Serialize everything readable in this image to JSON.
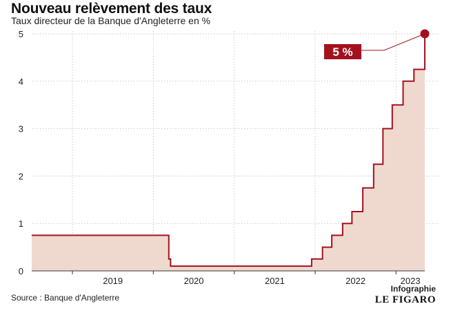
{
  "header": {
    "title": "Nouveau relèvement des taux",
    "subtitle": "Taux directeur de la Banque d'Angleterre en %"
  },
  "footer": {
    "source": "Source : Banque d'Angleterre",
    "kicker": "Infographie",
    "brand": "LE FIGARO"
  },
  "colors": {
    "line": "#a3111f",
    "fill": "#efd9cf",
    "badge": "#a3111f",
    "grid": "#c8c8c8"
  },
  "chart_data": {
    "type": "area",
    "step": "post",
    "title": "Nouveau relèvement des taux",
    "subtitle": "Taux directeur de la Banque d'Angleterre en %",
    "xlabel": "",
    "ylabel": "",
    "ylim": [
      0,
      5
    ],
    "yticks": [
      0,
      1,
      2,
      3,
      4,
      5
    ],
    "xlim": [
      "2018-07-01",
      "2023-05-11"
    ],
    "xtick_labels": [
      "2019",
      "2020",
      "2021",
      "2022",
      "2023"
    ],
    "grid": true,
    "series": [
      {
        "name": "",
        "points": [
          {
            "x": "2018-07-01",
            "y": 0.75
          },
          {
            "x": "2020-03-11",
            "y": 0.25
          },
          {
            "x": "2020-03-19",
            "y": 0.1
          },
          {
            "x": "2021-12-16",
            "y": 0.25
          },
          {
            "x": "2022-02-03",
            "y": 0.5
          },
          {
            "x": "2022-03-17",
            "y": 0.75
          },
          {
            "x": "2022-05-05",
            "y": 1.0
          },
          {
            "x": "2022-06-16",
            "y": 1.25
          },
          {
            "x": "2022-08-04",
            "y": 1.75
          },
          {
            "x": "2022-09-22",
            "y": 2.25
          },
          {
            "x": "2022-11-03",
            "y": 3.0
          },
          {
            "x": "2022-12-15",
            "y": 3.5
          },
          {
            "x": "2023-02-02",
            "y": 4.0
          },
          {
            "x": "2023-03-23",
            "y": 4.25
          },
          {
            "x": "2023-05-11",
            "y": 4.5
          },
          {
            "x": "2023-05-11",
            "y": 5.0
          }
        ]
      }
    ],
    "annotation": {
      "label": "5 %",
      "x": "2023-05-11",
      "y": 5.0
    }
  }
}
